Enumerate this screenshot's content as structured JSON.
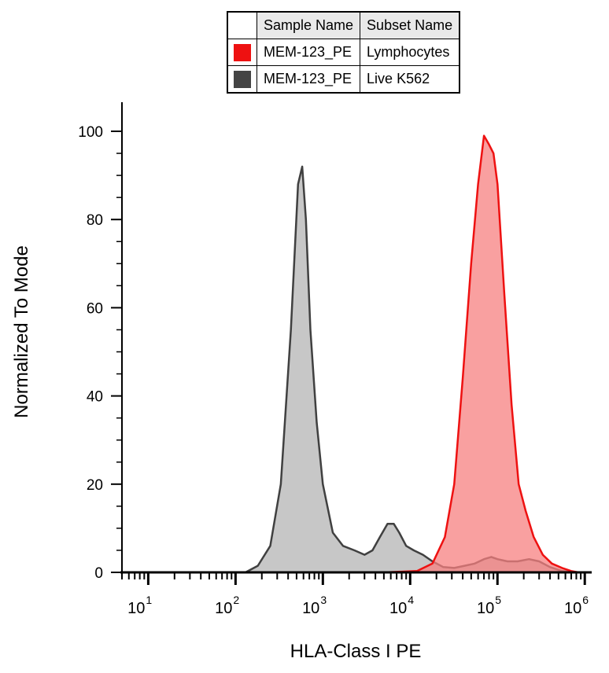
{
  "chart_data": {
    "type": "area",
    "title": "",
    "xlabel": "HLA-Class I PE",
    "ylabel": "Normalized To Mode",
    "x_scale": "log",
    "xlim": [
      5,
      1200000
    ],
    "ylim": [
      0,
      100
    ],
    "y_ticks": [
      0,
      20,
      40,
      60,
      80,
      100
    ],
    "x_tick_labels": [
      {
        "value": 10,
        "base": "10",
        "exp": "1"
      },
      {
        "value": 100,
        "base": "10",
        "exp": "2"
      },
      {
        "value": 1000,
        "base": "10",
        "exp": "3"
      },
      {
        "value": 10000,
        "base": "10",
        "exp": "4"
      },
      {
        "value": 100000,
        "base": "10",
        "exp": "5"
      },
      {
        "value": 1000000,
        "base": "10",
        "exp": "6"
      }
    ],
    "legend": {
      "placement": "top",
      "headers": [
        "Sample Name",
        "Subset Name"
      ],
      "rows": [
        {
          "sample": "MEM-123_PE",
          "subset": "Lymphocytes",
          "color": "#ee1111"
        },
        {
          "sample": "MEM-123_PE",
          "subset": "Live K562",
          "color": "#444444"
        }
      ]
    },
    "series": [
      {
        "name": "Live K562",
        "line_color": "#404040",
        "fill_color": "#b4b4b4",
        "x": [
          5,
          130,
          180,
          250,
          330,
          430,
          520,
          580,
          640,
          720,
          850,
          1000,
          1300,
          1700,
          2300,
          3000,
          3700,
          4500,
          5500,
          6500,
          7500,
          9000,
          11000,
          14000,
          18000,
          24000,
          32000,
          42000,
          55000,
          70000,
          85000,
          100000,
          130000,
          170000,
          230000,
          300000,
          400000,
          550000,
          750000,
          1000000,
          1200000
        ],
        "y": [
          0,
          0,
          1.5,
          6,
          20,
          55,
          88,
          92,
          80,
          55,
          34,
          20,
          9,
          6,
          5,
          4,
          5,
          8,
          11,
          11,
          9,
          6,
          5,
          4,
          2.5,
          1.2,
          1,
          1.5,
          2,
          3,
          3.5,
          3,
          2.5,
          2.5,
          3,
          2.5,
          1.2,
          0.3,
          0,
          0,
          0
        ]
      },
      {
        "name": "Lymphocytes",
        "line_color": "#ee1111",
        "fill_color": "#f78080",
        "x": [
          5,
          5000,
          12000,
          18000,
          25000,
          32000,
          40000,
          50000,
          60000,
          70000,
          80000,
          90000,
          100000,
          120000,
          145000,
          175000,
          210000,
          260000,
          330000,
          420000,
          550000,
          700000,
          850000,
          1000000,
          1200000
        ],
        "y": [
          0,
          0,
          0.3,
          2,
          8,
          20,
          44,
          70,
          88,
          99,
          97,
          95,
          88,
          63,
          38,
          20,
          14,
          8,
          4,
          2,
          1,
          0.3,
          0,
          0,
          0
        ]
      }
    ]
  }
}
